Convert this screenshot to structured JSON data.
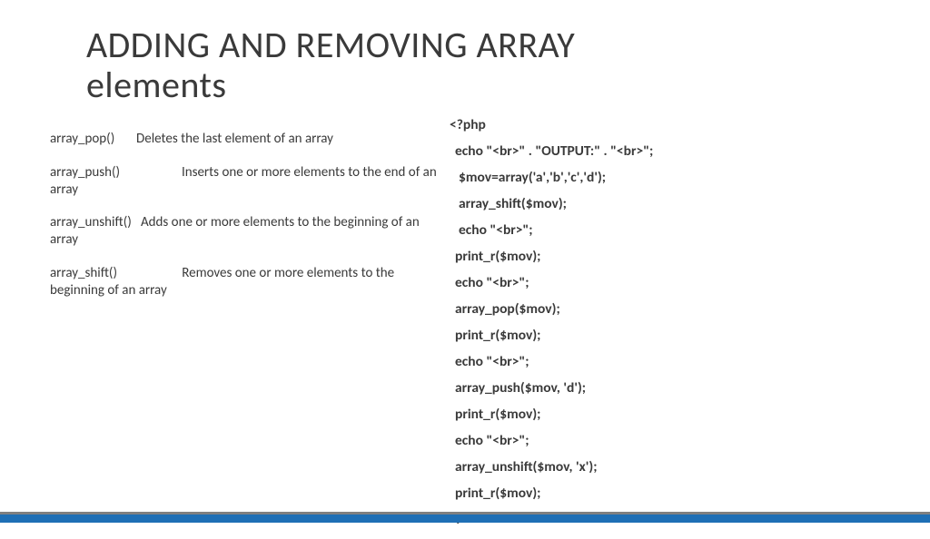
{
  "title_line1": "ADDING AND REMOVING ARRAY",
  "title_line2": "elements",
  "functions": [
    {
      "name": "array_pop()",
      "sep": "       ",
      "desc": "Deletes the last element of an array"
    },
    {
      "name": "array_push()",
      "sep": "                    ",
      "desc": "Inserts one or more elements to the end of an array"
    },
    {
      "name": "array_unshift()",
      "sep": "   ",
      "desc": "Adds one or more elements to the beginning of an array"
    },
    {
      "name": "array_shift()",
      "sep": "                     ",
      "desc": "Removes one or more elements to the beginning of an array"
    }
  ],
  "code": [
    {
      "text": "<?php",
      "indent": 0
    },
    {
      "text": "echo \"<br>\" . \"OUTPUT:\" . \"<br>\";",
      "indent": 1
    },
    {
      "text": "$mov=array('a','b','c','d');",
      "indent": 2
    },
    {
      "text": "array_shift($mov);",
      "indent": 2
    },
    {
      "text": "echo \"<br>\";",
      "indent": 2
    },
    {
      "text": "print_r($mov);",
      "indent": 1
    },
    {
      "text": "echo \"<br>\";",
      "indent": 1
    },
    {
      "text": "array_pop($mov);",
      "indent": 1
    },
    {
      "text": "print_r($mov);",
      "indent": 1
    },
    {
      "text": "echo \"<br>\";",
      "indent": 1
    },
    {
      "text": "array_push($mov, 'd');",
      "indent": 1
    },
    {
      "text": "print_r($mov);",
      "indent": 1
    },
    {
      "text": "echo \"<br>\";",
      "indent": 1
    },
    {
      "text": "array_unshift($mov, 'x');",
      "indent": 1
    },
    {
      "text": "print_r($mov);",
      "indent": 1
    },
    {
      "text": "?>",
      "indent": 1
    }
  ],
  "colors": {
    "text": "#3a3a3a",
    "bar_top": "#808080",
    "bar_main": "#1f6fb5",
    "background": "#ffffff"
  }
}
